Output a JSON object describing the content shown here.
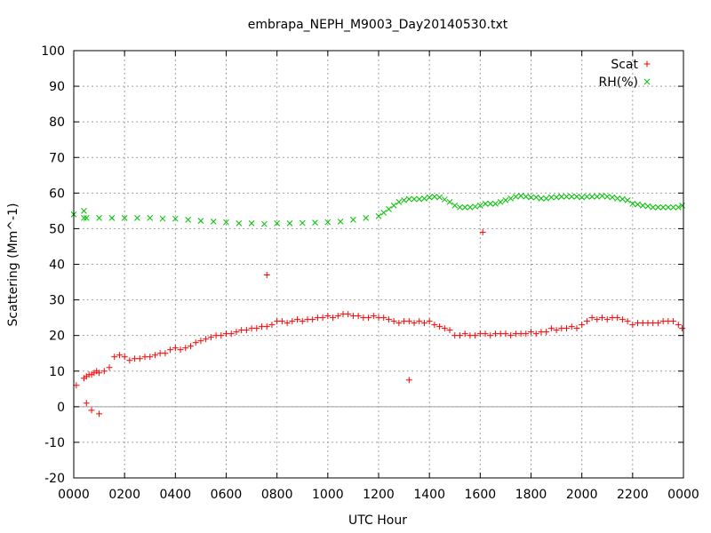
{
  "chart_data": {
    "type": "scatter",
    "title": "embrapa_NEPH_M9003_Day20140530.txt",
    "xlabel": "UTC Hour",
    "ylabel": "Scattering (Mm^-1)",
    "xlim": [
      0,
      24
    ],
    "ylim": [
      -20,
      100
    ],
    "x_ticks": [
      0,
      2,
      4,
      6,
      8,
      10,
      12,
      14,
      16,
      18,
      20,
      22,
      24
    ],
    "x_tick_labels": [
      "0000",
      "0200",
      "0400",
      "0600",
      "0800",
      "1000",
      "1200",
      "1400",
      "1600",
      "1800",
      "2000",
      "2200",
      "0000"
    ],
    "y_ticks": [
      -20,
      -10,
      0,
      10,
      20,
      30,
      40,
      50,
      60,
      70,
      80,
      90,
      100
    ],
    "y_tick_labels": [
      "-20",
      "-10",
      "0",
      "10",
      "20",
      "30",
      "40",
      "50",
      "60",
      "70",
      "80",
      "90",
      "100"
    ],
    "grid": true,
    "legend_position": "top-right",
    "zero_line": true,
    "series": [
      {
        "name": "Scat",
        "marker": "plus",
        "color": "#ff0000",
        "x": [
          0.1,
          0.4,
          0.5,
          0.6,
          0.7,
          0.8,
          0.9,
          1.0,
          1.2,
          1.4,
          1.6,
          1.8,
          2.0,
          2.2,
          2.4,
          2.6,
          2.8,
          3.0,
          3.2,
          3.4,
          3.6,
          3.8,
          4.0,
          4.2,
          4.4,
          4.6,
          4.8,
          5.0,
          5.2,
          5.4,
          5.6,
          5.8,
          6.0,
          6.2,
          6.4,
          6.6,
          6.8,
          7.0,
          7.2,
          7.4,
          7.6,
          7.8,
          8.0,
          8.2,
          8.4,
          8.6,
          8.8,
          9.0,
          9.2,
          9.4,
          9.6,
          9.8,
          10.0,
          10.2,
          10.4,
          10.6,
          10.8,
          11.0,
          11.2,
          11.4,
          11.6,
          11.8,
          12.0,
          12.2,
          12.4,
          12.6,
          12.8,
          13.0,
          13.2,
          13.4,
          13.6,
          13.8,
          14.0,
          14.2,
          14.4,
          14.6,
          14.8,
          15.0,
          15.2,
          15.4,
          15.6,
          15.8,
          16.0,
          16.2,
          16.4,
          16.6,
          16.8,
          17.0,
          17.2,
          17.4,
          17.6,
          17.8,
          18.0,
          18.2,
          18.4,
          18.6,
          18.8,
          19.0,
          19.2,
          19.4,
          19.6,
          19.8,
          20.0,
          20.2,
          20.4,
          20.6,
          20.8,
          21.0,
          21.2,
          21.4,
          21.6,
          21.8,
          22.0,
          22.2,
          22.4,
          22.6,
          22.8,
          23.0,
          23.2,
          23.4,
          23.6,
          23.8,
          23.95,
          7.6,
          16.1,
          13.2,
          1.0,
          0.7,
          0.5
        ],
        "y": [
          6,
          8,
          8.5,
          9,
          9,
          9.5,
          10,
          9.5,
          10,
          11,
          14,
          14.5,
          14,
          13,
          13.5,
          13.5,
          14,
          14,
          14.5,
          15,
          15,
          16,
          16.5,
          16,
          16.5,
          17,
          18,
          18.5,
          19,
          19.5,
          20,
          20,
          20.5,
          20.5,
          21,
          21.5,
          21.5,
          22,
          22,
          22.5,
          22.5,
          23,
          24,
          24,
          23.5,
          24,
          24.5,
          24,
          24.5,
          24.5,
          25,
          25,
          25.5,
          25,
          25.5,
          26,
          26,
          25.5,
          25.5,
          25,
          25,
          25.5,
          25,
          25,
          24.5,
          24,
          23.5,
          24,
          24,
          23.5,
          24,
          23.5,
          24,
          23,
          22.5,
          22,
          21.5,
          20,
          20,
          20.5,
          20,
          20,
          20.5,
          20.5,
          20,
          20.5,
          20.5,
          20.5,
          20,
          20.5,
          20.5,
          20.5,
          21,
          20.5,
          21,
          21,
          22,
          21.5,
          22,
          22,
          22.5,
          22,
          23,
          24,
          25,
          24.5,
          25,
          24.5,
          25,
          25,
          24.5,
          24,
          23,
          23.5,
          23.5,
          23.5,
          23.5,
          23.5,
          24,
          24,
          24,
          23,
          22,
          37,
          49,
          7.5,
          -2,
          -1,
          1
        ]
      },
      {
        "name": "RH(%)",
        "marker": "cross",
        "color": "#00c000",
        "x": [
          0.0,
          0.4,
          0.5,
          1.0,
          1.5,
          2.0,
          2.5,
          3.0,
          3.5,
          4.0,
          4.5,
          5.0,
          5.5,
          6.0,
          6.5,
          7.0,
          7.5,
          8.0,
          8.5,
          9.0,
          9.5,
          10.0,
          10.5,
          11.0,
          11.5,
          12.0,
          12.2,
          12.4,
          12.6,
          12.8,
          13.0,
          13.2,
          13.4,
          13.6,
          13.8,
          14.0,
          14.2,
          14.4,
          14.6,
          14.8,
          15.0,
          15.2,
          15.4,
          15.6,
          15.8,
          16.0,
          16.2,
          16.4,
          16.6,
          16.8,
          17.0,
          17.2,
          17.4,
          17.6,
          17.8,
          18.0,
          18.2,
          18.4,
          18.6,
          18.8,
          19.0,
          19.2,
          19.4,
          19.6,
          19.8,
          20.0,
          20.2,
          20.4,
          20.6,
          20.8,
          21.0,
          21.2,
          21.4,
          21.6,
          21.8,
          22.0,
          22.2,
          22.4,
          22.6,
          22.8,
          23.0,
          23.2,
          23.4,
          23.6,
          23.8,
          23.95,
          0.4
        ],
        "y": [
          54,
          53,
          53,
          53,
          53,
          53,
          53,
          53,
          52.8,
          52.8,
          52.5,
          52.2,
          52,
          51.8,
          51.5,
          51.5,
          51.3,
          51.5,
          51.5,
          51.6,
          51.7,
          51.8,
          52,
          52.5,
          53,
          53.5,
          54.5,
          55.5,
          56.5,
          57.5,
          58,
          58.3,
          58.3,
          58.3,
          58.5,
          58.8,
          59,
          58.8,
          58.2,
          57.5,
          56.5,
          56,
          56,
          56,
          56.2,
          56.5,
          57,
          57,
          57,
          57.5,
          58,
          58.5,
          59,
          59.2,
          59,
          58.8,
          58.8,
          58.5,
          58.5,
          58.8,
          58.8,
          59,
          59,
          59,
          59,
          58.8,
          59,
          59,
          59,
          59.2,
          59,
          58.8,
          58.5,
          58.3,
          58,
          57,
          56.8,
          56.5,
          56.3,
          56,
          56,
          56,
          56,
          56,
          56,
          56.5,
          55
        ]
      }
    ]
  }
}
